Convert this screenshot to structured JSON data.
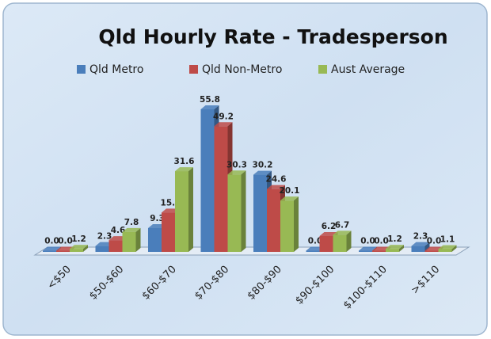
{
  "chart_data": {
    "type": "bar3d",
    "title": "Qld Hourly Rate - Tradesperson",
    "categories": [
      "<$50",
      "$50-$60",
      "$60-$70",
      "$70-$80",
      "$80-$90",
      "$90-$100",
      "$100-$110",
      ">$110"
    ],
    "series": [
      {
        "name": "Qld Metro",
        "color": "#4a7ebb",
        "values": [
          0,
          2.3,
          9.3,
          55.8,
          30.2,
          0,
          0,
          2.3
        ],
        "value_labels": [
          "0.0",
          "2.3",
          "9.3",
          "55.8",
          "30.2",
          "0.0",
          "0.0",
          "2.3"
        ]
      },
      {
        "name": "Qld Non-Metro",
        "color": "#be4b48",
        "values": [
          0,
          4.6,
          15.4,
          49.2,
          24.6,
          6.2,
          0,
          0
        ],
        "value_labels": [
          "0.0",
          "4.6",
          "15.4",
          "49.2",
          "24.6",
          "6.2",
          "0.0",
          "0.0"
        ]
      },
      {
        "name": "Aust Average",
        "color": "#98b954",
        "values": [
          1.2,
          7.8,
          31.6,
          30.3,
          20.1,
          6.7,
          1.2,
          1.1
        ],
        "value_labels": [
          "1.2",
          "7.8",
          "31.6",
          "30.3",
          "20.1",
          "6.7",
          "1.2",
          "1.1"
        ]
      }
    ],
    "legend": "top"
  }
}
